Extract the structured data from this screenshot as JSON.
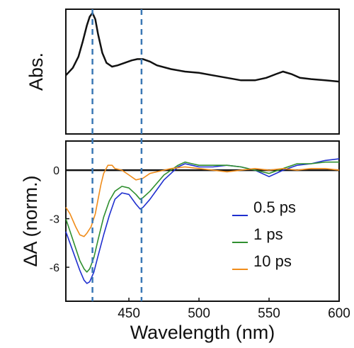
{
  "chart_data": [
    {
      "type": "line",
      "panel": "top",
      "ylabel": "Abs.",
      "yticks": [],
      "xlim": [
        405,
        600
      ],
      "ylim": [
        0,
        1
      ],
      "series": [
        {
          "color": "#111111",
          "x": [
            405,
            410,
            414,
            417,
            420,
            422,
            424,
            426,
            428,
            431,
            434,
            438,
            442,
            447,
            452,
            456,
            460,
            465,
            470,
            480,
            490,
            500,
            510,
            520,
            530,
            540,
            548,
            555,
            560,
            566,
            572,
            580,
            590,
            600
          ],
          "y": [
            0.47,
            0.53,
            0.62,
            0.74,
            0.87,
            0.94,
            0.97,
            0.92,
            0.8,
            0.65,
            0.57,
            0.54,
            0.55,
            0.57,
            0.59,
            0.6,
            0.6,
            0.58,
            0.55,
            0.52,
            0.5,
            0.49,
            0.47,
            0.45,
            0.43,
            0.43,
            0.45,
            0.48,
            0.5,
            0.48,
            0.45,
            0.44,
            0.43,
            0.42
          ]
        }
      ],
      "markers": [
        424,
        459
      ]
    },
    {
      "type": "line",
      "panel": "bottom",
      "xlabel": "Wavelength (nm)",
      "ylabel": "ΔA (norm.)",
      "xlim": [
        405,
        600
      ],
      "ylim": [
        -8.1,
        1.8
      ],
      "xticks": [
        "450",
        "500",
        "550",
        "600"
      ],
      "xtick_values": [
        450,
        500,
        550,
        600
      ],
      "yticks": [
        "0",
        "-3",
        "-6"
      ],
      "ytick_values": [
        0,
        -3,
        -6
      ],
      "legend_position": "center-right",
      "markers": [
        424,
        459
      ],
      "series": [
        {
          "name": "0.5 ps",
          "color": "#1f2fcf",
          "x": [
            405,
            410,
            415,
            418,
            420,
            422,
            425,
            428,
            432,
            436,
            440,
            445,
            450,
            455,
            458,
            460,
            465,
            470,
            475,
            480,
            485,
            490,
            495,
            500,
            510,
            520,
            530,
            540,
            550,
            560,
            570,
            580,
            590,
            600
          ],
          "y": [
            -3.8,
            -5.0,
            -6.2,
            -6.8,
            -7.0,
            -6.9,
            -6.3,
            -5.3,
            -4.0,
            -2.8,
            -1.8,
            -1.4,
            -1.5,
            -2.1,
            -2.4,
            -2.3,
            -1.8,
            -1.2,
            -0.6,
            -0.2,
            0.2,
            0.4,
            0.3,
            0.2,
            0.2,
            0.3,
            0.2,
            0.0,
            -0.4,
            0.0,
            0.3,
            0.4,
            0.6,
            0.7
          ]
        },
        {
          "name": "1 ps",
          "color": "#2f8f2f",
          "x": [
            405,
            410,
            415,
            418,
            420,
            422,
            425,
            428,
            432,
            436,
            440,
            445,
            450,
            455,
            458,
            460,
            465,
            470,
            475,
            480,
            485,
            490,
            495,
            500,
            510,
            520,
            530,
            540,
            550,
            560,
            570,
            580,
            590,
            600
          ],
          "y": [
            -3.0,
            -4.3,
            -5.6,
            -6.1,
            -6.3,
            -6.1,
            -5.4,
            -4.3,
            -2.9,
            -1.9,
            -1.3,
            -1.0,
            -1.1,
            -1.5,
            -1.8,
            -1.7,
            -1.3,
            -0.8,
            -0.3,
            0.0,
            0.3,
            0.5,
            0.4,
            0.3,
            0.3,
            0.3,
            0.2,
            0.0,
            -0.2,
            0.1,
            0.4,
            0.4,
            0.5,
            0.5
          ]
        },
        {
          "name": "10 ps",
          "color": "#f08c1a",
          "x": [
            405,
            408,
            412,
            415,
            418,
            420,
            423,
            426,
            428,
            430,
            432,
            435,
            438,
            440,
            445,
            450,
            455,
            460,
            465,
            470,
            475,
            480,
            490,
            500,
            510,
            520,
            530,
            540,
            550,
            560,
            570,
            580,
            590,
            600
          ],
          "y": [
            -2.3,
            -2.7,
            -3.5,
            -4.0,
            -4.1,
            -3.9,
            -3.5,
            -2.7,
            -1.8,
            -0.9,
            -0.2,
            0.3,
            0.3,
            0.1,
            0.0,
            -0.3,
            -0.6,
            -0.5,
            -0.2,
            -0.1,
            0.0,
            0.1,
            0.2,
            0.1,
            0.0,
            -0.1,
            0.0,
            0.1,
            0.0,
            0.1,
            0.0,
            0.1,
            0.1,
            0.0
          ]
        }
      ]
    }
  ]
}
